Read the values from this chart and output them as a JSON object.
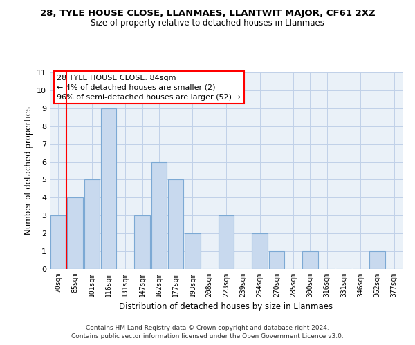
{
  "title": "28, TYLE HOUSE CLOSE, LLANMAES, LLANTWIT MAJOR, CF61 2XZ",
  "subtitle": "Size of property relative to detached houses in Llanmaes",
  "xlabel": "Distribution of detached houses by size in Llanmaes",
  "ylabel": "Number of detached properties",
  "bin_labels": [
    "70sqm",
    "85sqm",
    "101sqm",
    "116sqm",
    "131sqm",
    "147sqm",
    "162sqm",
    "177sqm",
    "193sqm",
    "208sqm",
    "223sqm",
    "239sqm",
    "254sqm",
    "270sqm",
    "285sqm",
    "300sqm",
    "316sqm",
    "331sqm",
    "346sqm",
    "362sqm",
    "377sqm"
  ],
  "bar_heights": [
    3,
    4,
    5,
    9,
    0,
    3,
    6,
    5,
    2,
    0,
    3,
    0,
    2,
    1,
    0,
    1,
    0,
    0,
    0,
    1,
    0
  ],
  "bar_color": "#c8d9ee",
  "bar_edge_color": "#7ca9d4",
  "red_line_x": 0.5,
  "ylim": [
    0,
    11
  ],
  "yticks": [
    0,
    1,
    2,
    3,
    4,
    5,
    6,
    7,
    8,
    9,
    10,
    11
  ],
  "annotation_title": "28 TYLE HOUSE CLOSE: 84sqm",
  "annotation_line1": "← 4% of detached houses are smaller (2)",
  "annotation_line2": "96% of semi-detached houses are larger (52) →",
  "footer_line1": "Contains HM Land Registry data © Crown copyright and database right 2024.",
  "footer_line2": "Contains public sector information licensed under the Open Government Licence v3.0.",
  "grid_color": "#c0d0e8",
  "background_color": "#ffffff",
  "plot_bg_color": "#eaf1f8"
}
